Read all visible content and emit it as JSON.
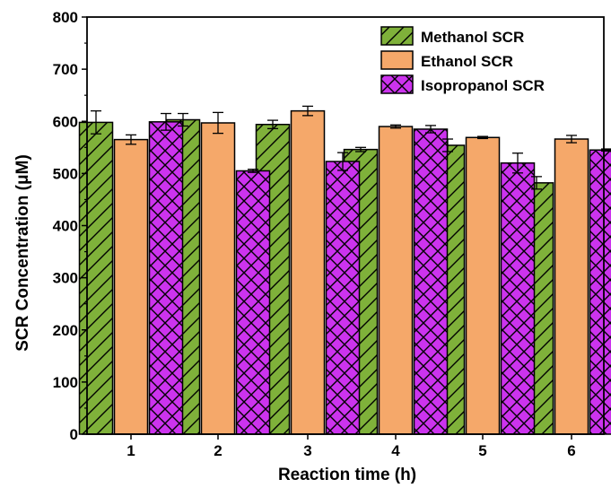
{
  "chart_data": {
    "type": "bar",
    "xlabel": "Reaction time (h)",
    "ylabel": "SCR Concentration (μM)",
    "categories": [
      "1",
      "2",
      "3",
      "4",
      "5",
      "6"
    ],
    "ylim": [
      0,
      800
    ],
    "yticks": [
      "0",
      "100",
      "200",
      "300",
      "400",
      "500",
      "600",
      "700",
      "800"
    ],
    "series": [
      {
        "name": "Methanol SCR",
        "values": [
          598,
          603,
          594,
          546,
          554,
          482
        ],
        "errors": [
          22,
          12,
          8,
          4,
          12,
          12
        ],
        "color": "#7fb13a",
        "pattern": "diagonal-hatch"
      },
      {
        "name": "Ethanol SCR",
        "values": [
          565,
          597,
          620,
          590,
          569,
          566
        ],
        "errors": [
          9,
          20,
          9,
          3,
          2,
          7
        ],
        "color": "#f5a86a",
        "pattern": "solid"
      },
      {
        "name": "Isopropanol SCR",
        "values": [
          599,
          505,
          523,
          585,
          520,
          545
        ],
        "errors": [
          16,
          3,
          17,
          7,
          19,
          2
        ],
        "color": "#cc33ee",
        "pattern": "cross-hatch"
      }
    ],
    "legend_position": "top-right",
    "grid": false
  }
}
